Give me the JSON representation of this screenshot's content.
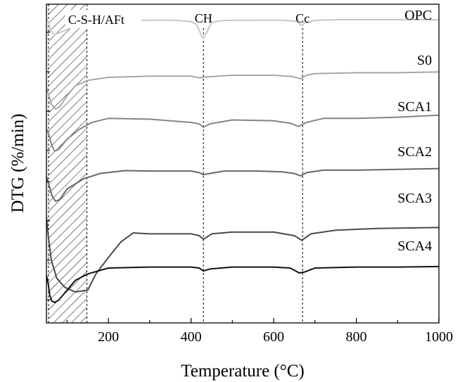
{
  "chart_data": {
    "type": "line",
    "title": "",
    "xlabel": "Temperature (°C)",
    "ylabel": "DTG (%/min)",
    "xlim": [
      50,
      1000
    ],
    "xticks": [
      200,
      400,
      600,
      800,
      1000
    ],
    "y_tick_labels": "none",
    "grid": false,
    "legend": "none (series labeled inline at right)",
    "annotations": [
      {
        "label": "C-S-H/AFt",
        "type": "hatched-region",
        "x_range": [
          55,
          148
        ]
      },
      {
        "label": "CH",
        "type": "vertical-dashed-line",
        "x": 430
      },
      {
        "label": "Cc",
        "type": "vertical-dashed-line",
        "x": 670
      }
    ],
    "series": [
      {
        "name": "OPC",
        "color": "#c8c8c8",
        "baseline": 0.96,
        "points": [
          [
            50,
            1.0
          ],
          [
            55,
            0.9
          ],
          [
            60,
            0.4
          ],
          [
            70,
            0.18
          ],
          [
            80,
            0.28
          ],
          [
            100,
            0.45
          ],
          [
            120,
            0.72
          ],
          [
            150,
            0.88
          ],
          [
            200,
            0.94
          ],
          [
            300,
            0.97
          ],
          [
            360,
            0.97
          ],
          [
            400,
            0.9
          ],
          [
            415,
            0.7
          ],
          [
            425,
            0.12
          ],
          [
            430,
            0.0
          ],
          [
            438,
            0.3
          ],
          [
            450,
            0.86
          ],
          [
            480,
            0.96
          ],
          [
            550,
            0.97
          ],
          [
            620,
            0.97
          ],
          [
            655,
            0.92
          ],
          [
            668,
            0.68
          ],
          [
            675,
            0.82
          ],
          [
            700,
            0.96
          ],
          [
            750,
            1.0
          ],
          [
            800,
            1.0
          ],
          [
            900,
            1.0
          ],
          [
            1000,
            1.0
          ]
        ]
      },
      {
        "name": "S0",
        "color": "#a6a6a6",
        "baseline": 0.82,
        "points": [
          [
            50,
            0.5
          ],
          [
            55,
            0.35
          ],
          [
            62,
            0.12
          ],
          [
            72,
            0.0
          ],
          [
            82,
            0.05
          ],
          [
            100,
            0.32
          ],
          [
            120,
            0.55
          ],
          [
            150,
            0.68
          ],
          [
            200,
            0.75
          ],
          [
            300,
            0.78
          ],
          [
            400,
            0.78
          ],
          [
            420,
            0.74
          ],
          [
            435,
            0.76
          ],
          [
            500,
            0.8
          ],
          [
            600,
            0.8
          ],
          [
            645,
            0.77
          ],
          [
            665,
            0.72
          ],
          [
            680,
            0.8
          ],
          [
            700,
            0.84
          ],
          [
            800,
            0.86
          ],
          [
            900,
            0.86
          ],
          [
            1000,
            0.88
          ]
        ]
      },
      {
        "name": "SCA1",
        "color": "#858585",
        "baseline": 0.72,
        "points": [
          [
            50,
            0.55
          ],
          [
            56,
            0.42
          ],
          [
            62,
            0.18
          ],
          [
            70,
            0.0
          ],
          [
            80,
            0.05
          ],
          [
            100,
            0.3
          ],
          [
            130,
            0.55
          ],
          [
            160,
            0.72
          ],
          [
            200,
            0.82
          ],
          [
            300,
            0.8
          ],
          [
            400,
            0.72
          ],
          [
            420,
            0.68
          ],
          [
            430,
            0.6
          ],
          [
            445,
            0.68
          ],
          [
            500,
            0.78
          ],
          [
            600,
            0.76
          ],
          [
            640,
            0.7
          ],
          [
            660,
            0.62
          ],
          [
            680,
            0.72
          ],
          [
            720,
            0.82
          ],
          [
            800,
            0.82
          ],
          [
            900,
            0.85
          ],
          [
            1000,
            0.9
          ]
        ]
      },
      {
        "name": "SCA2",
        "color": "#666666",
        "baseline": 0.78,
        "points": [
          [
            50,
            0.6
          ],
          [
            56,
            0.4
          ],
          [
            64,
            0.12
          ],
          [
            72,
            0.0
          ],
          [
            82,
            0.04
          ],
          [
            100,
            0.3
          ],
          [
            140,
            0.55
          ],
          [
            180,
            0.68
          ],
          [
            240,
            0.75
          ],
          [
            300,
            0.74
          ],
          [
            400,
            0.74
          ],
          [
            420,
            0.7
          ],
          [
            430,
            0.65
          ],
          [
            445,
            0.68
          ],
          [
            480,
            0.74
          ],
          [
            560,
            0.74
          ],
          [
            620,
            0.72
          ],
          [
            650,
            0.68
          ],
          [
            665,
            0.62
          ],
          [
            680,
            0.7
          ],
          [
            720,
            0.76
          ],
          [
            800,
            0.76
          ],
          [
            900,
            0.78
          ],
          [
            1000,
            0.8
          ]
        ]
      },
      {
        "name": "SCA3",
        "color": "#4a4a4a",
        "baseline": 0.92,
        "points": [
          [
            50,
            0.82
          ],
          [
            55,
            0.6
          ],
          [
            62,
            0.35
          ],
          [
            75,
            0.15
          ],
          [
            95,
            0.05
          ],
          [
            120,
            0.0
          ],
          [
            150,
            0.02
          ],
          [
            170,
            0.2
          ],
          [
            200,
            0.38
          ],
          [
            230,
            0.55
          ],
          [
            260,
            0.65
          ],
          [
            300,
            0.64
          ],
          [
            400,
            0.64
          ],
          [
            420,
            0.62
          ],
          [
            430,
            0.58
          ],
          [
            450,
            0.64
          ],
          [
            500,
            0.66
          ],
          [
            600,
            0.66
          ],
          [
            650,
            0.62
          ],
          [
            668,
            0.57
          ],
          [
            690,
            0.64
          ],
          [
            750,
            0.68
          ],
          [
            850,
            0.7
          ],
          [
            1000,
            0.71
          ]
        ]
      },
      {
        "name": "SCA4",
        "color": "#111111",
        "baseline": 0.82,
        "points": [
          [
            50,
            0.55
          ],
          [
            55,
            0.35
          ],
          [
            58,
            0.15
          ],
          [
            63,
            0.03
          ],
          [
            70,
            0.0
          ],
          [
            80,
            0.05
          ],
          [
            95,
            0.2
          ],
          [
            120,
            0.45
          ],
          [
            150,
            0.58
          ],
          [
            200,
            0.7
          ],
          [
            300,
            0.72
          ],
          [
            400,
            0.72
          ],
          [
            420,
            0.7
          ],
          [
            430,
            0.64
          ],
          [
            445,
            0.68
          ],
          [
            500,
            0.72
          ],
          [
            600,
            0.72
          ],
          [
            640,
            0.7
          ],
          [
            662,
            0.6
          ],
          [
            675,
            0.62
          ],
          [
            700,
            0.7
          ],
          [
            800,
            0.72
          ],
          [
            900,
            0.72
          ],
          [
            1000,
            0.73
          ]
        ]
      }
    ]
  }
}
